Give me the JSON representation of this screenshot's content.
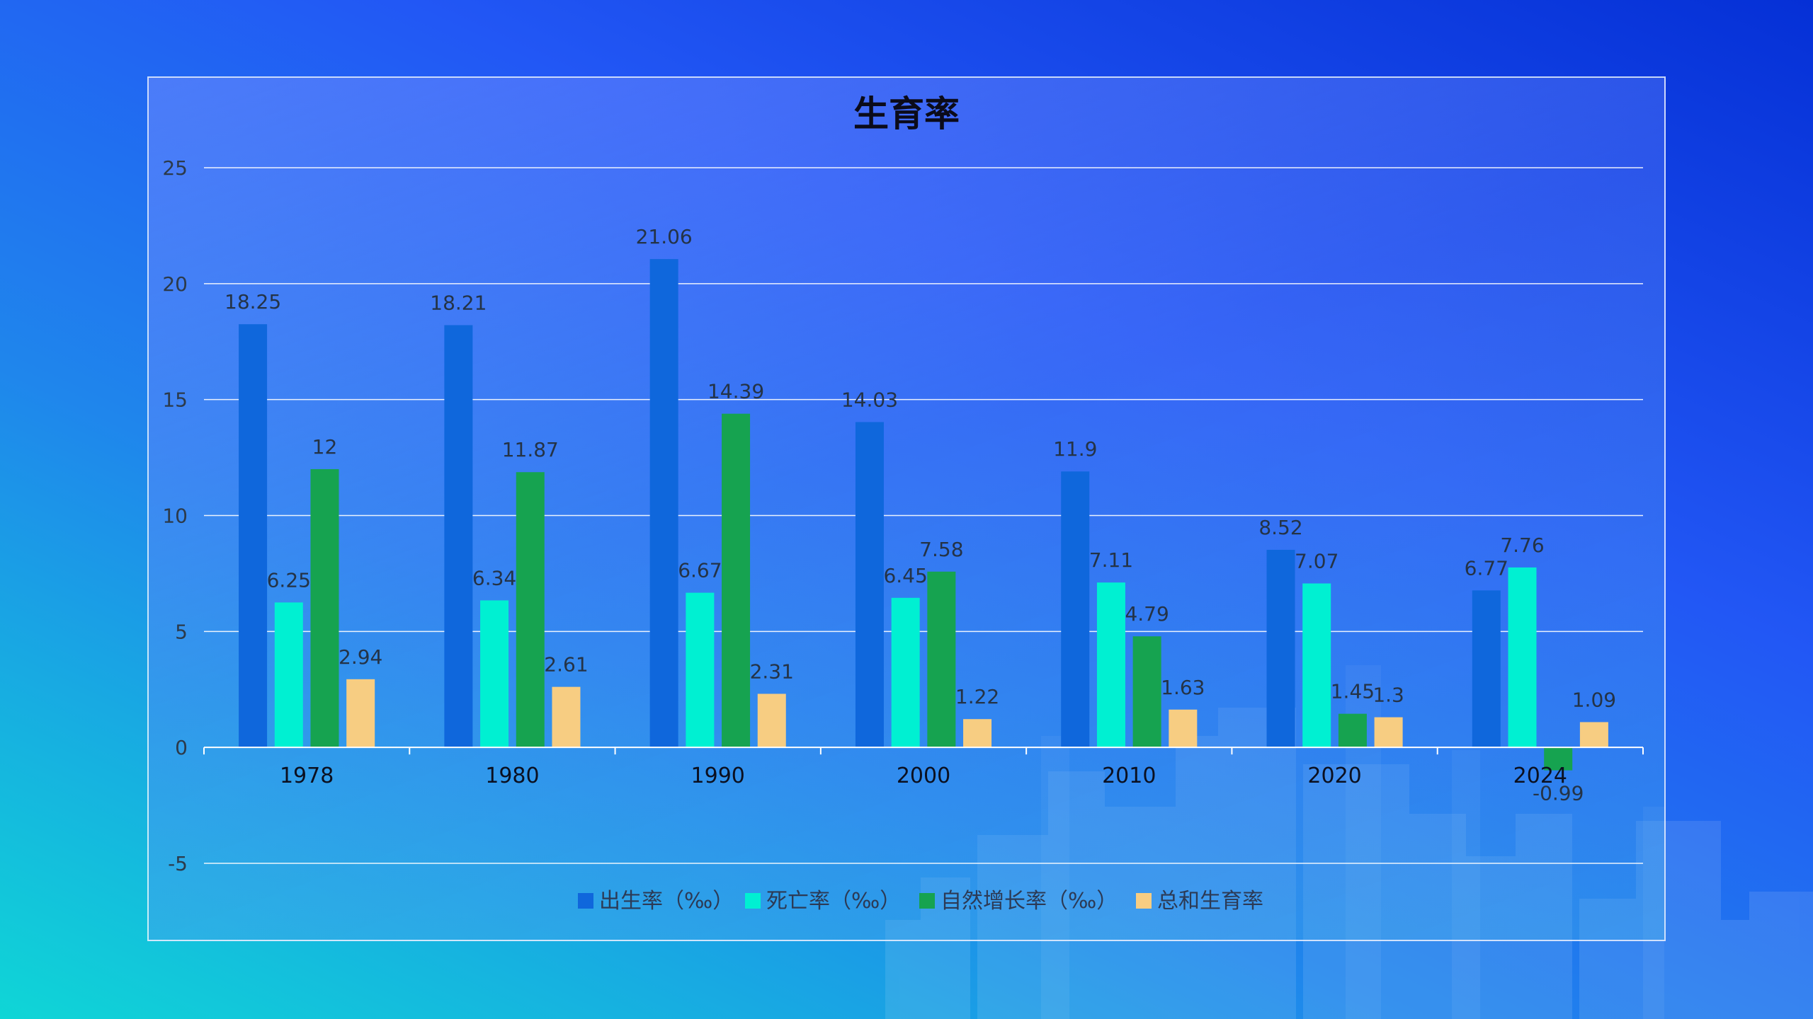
{
  "colors": {
    "series": [
      "#0f67dc",
      "#00f0d2",
      "#16a350",
      "#f7cd82"
    ],
    "grid": "#ffffff",
    "axis": "#ffffff"
  },
  "chart_data": {
    "type": "bar",
    "title": "生育率",
    "categories": [
      "1978",
      "1980",
      "1990",
      "2000",
      "2010",
      "2020",
      "2024"
    ],
    "series": [
      {
        "name": "出生率（‰）",
        "values": [
          18.25,
          18.21,
          21.06,
          14.03,
          11.9,
          8.52,
          6.77
        ]
      },
      {
        "name": "死亡率（‰）",
        "values": [
          6.25,
          6.34,
          6.67,
          6.45,
          7.11,
          7.07,
          7.76
        ]
      },
      {
        "name": "自然增长率（‰）",
        "values": [
          12,
          11.87,
          14.39,
          7.58,
          4.79,
          1.45,
          -0.99
        ]
      },
      {
        "name": "总和生育率",
        "values": [
          2.94,
          2.61,
          2.31,
          1.22,
          1.63,
          1.3,
          1.09
        ]
      }
    ],
    "yticks": [
      25,
      20,
      15,
      10,
      5,
      0,
      -5
    ],
    "ylim": [
      -5,
      25
    ],
    "grid": true,
    "legend": "bottom"
  }
}
